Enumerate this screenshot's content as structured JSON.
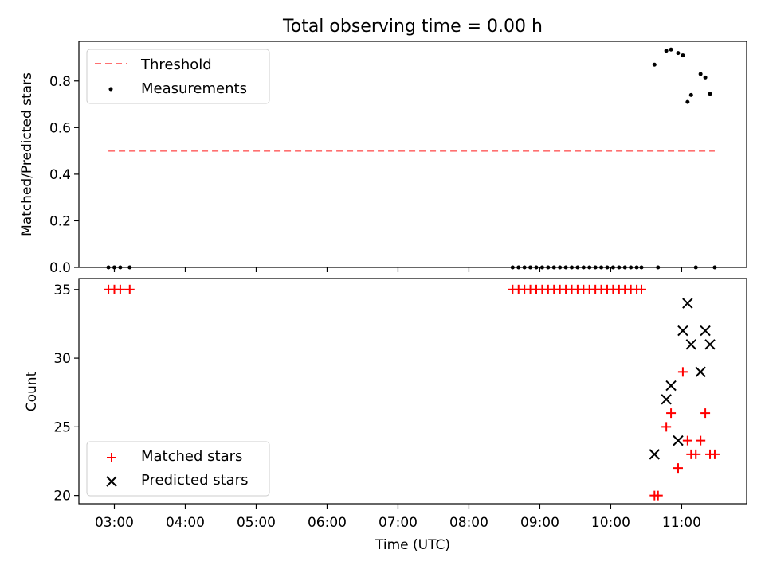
{
  "chart_data": [
    {
      "type": "scatter",
      "title": "Total observing time = 0.00 h",
      "xlabel": "",
      "ylabel": "Matched/Predicted stars",
      "ylim": [
        0,
        0.97
      ],
      "yticks": [
        "0.0",
        "0.2",
        "0.4",
        "0.6",
        "0.8"
      ],
      "ytick_values": [
        0,
        0.2,
        0.4,
        0.6,
        0.8
      ],
      "grid": false,
      "legend_position": "top-left",
      "threshold": {
        "name": "Threshold",
        "y": 0.5,
        "x_start": "02:55",
        "x_end": "11:28",
        "color": "#ff7070",
        "style": "dashed"
      },
      "measurements": {
        "name": "Measurements",
        "color": "#000000",
        "x": [
          "02:55",
          "03:00",
          "03:05",
          "03:13",
          "08:37",
          "08:42",
          "08:47",
          "08:52",
          "08:57",
          "09:02",
          "09:07",
          "09:12",
          "09:17",
          "09:22",
          "09:27",
          "09:32",
          "09:37",
          "09:42",
          "09:47",
          "09:52",
          "09:57",
          "10:02",
          "10:07",
          "10:12",
          "10:17",
          "10:22",
          "10:26",
          "10:37",
          "10:40",
          "10:47",
          "10:51",
          "10:57",
          "11:01",
          "11:05",
          "11:08",
          "11:12",
          "11:16",
          "11:20",
          "11:24",
          "11:28"
        ],
        "y": [
          0,
          0,
          0,
          0,
          0,
          0,
          0,
          0,
          0,
          0,
          0,
          0,
          0,
          0,
          0,
          0,
          0,
          0,
          0,
          0,
          0,
          0,
          0,
          0,
          0,
          0,
          0,
          0.87,
          0,
          0.93,
          0.935,
          0.92,
          0.91,
          0.71,
          0.74,
          0,
          0.83,
          0.815,
          0.745,
          0
        ]
      }
    },
    {
      "type": "scatter",
      "title": "",
      "xlabel": "Time (UTC)",
      "ylabel": "Count",
      "ylim": [
        19.4,
        35.8
      ],
      "yticks": [
        "20",
        "25",
        "30",
        "35"
      ],
      "ytick_values": [
        20,
        25,
        30,
        35
      ],
      "xlim": [
        "02:30",
        "11:55"
      ],
      "xticks": [
        "03:00",
        "04:00",
        "05:00",
        "06:00",
        "07:00",
        "08:00",
        "09:00",
        "10:00",
        "11:00"
      ],
      "grid": false,
      "legend_position": "bottom-left",
      "series": [
        {
          "name": "Matched stars",
          "marker": "plus",
          "color": "#ff0000",
          "x": [
            "02:55",
            "03:00",
            "03:05",
            "03:13",
            "08:37",
            "08:42",
            "08:47",
            "08:52",
            "08:57",
            "09:02",
            "09:07",
            "09:12",
            "09:17",
            "09:22",
            "09:27",
            "09:32",
            "09:37",
            "09:42",
            "09:47",
            "09:52",
            "09:57",
            "10:02",
            "10:07",
            "10:12",
            "10:17",
            "10:22",
            "10:26",
            "10:37",
            "10:40",
            "10:47",
            "10:51",
            "10:57",
            "11:01",
            "11:05",
            "11:08",
            "11:12",
            "11:16",
            "11:20",
            "11:24",
            "11:28"
          ],
          "y": [
            35,
            35,
            35,
            35,
            35,
            35,
            35,
            35,
            35,
            35,
            35,
            35,
            35,
            35,
            35,
            35,
            35,
            35,
            35,
            35,
            35,
            35,
            35,
            35,
            35,
            35,
            35,
            20,
            20,
            25,
            26,
            22,
            29,
            24,
            23,
            23,
            24,
            26,
            23,
            23
          ]
        },
        {
          "name": "Predicted stars",
          "marker": "x",
          "color": "#000000",
          "x": [
            "10:37",
            "10:47",
            "10:51",
            "10:57",
            "11:01",
            "11:05",
            "11:08",
            "11:16",
            "11:20",
            "11:24"
          ],
          "y": [
            23,
            27,
            28,
            24,
            32,
            34,
            31,
            29,
            32,
            31
          ]
        }
      ]
    }
  ]
}
